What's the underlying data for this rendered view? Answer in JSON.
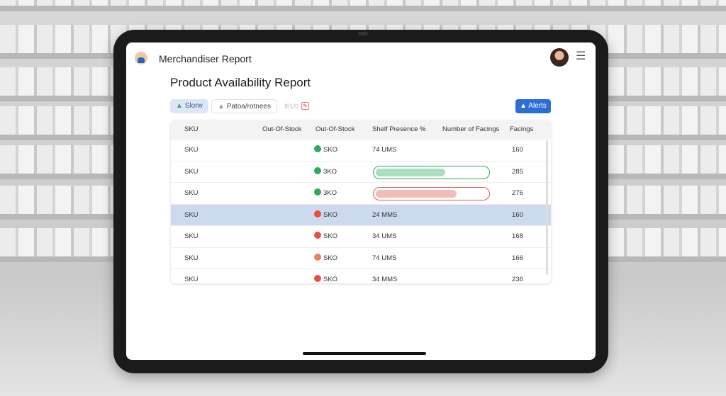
{
  "app": {
    "title": "Merchandiser Report",
    "logo_icon": "merchandiser-logo-icon",
    "menu_icon": "hamburger-menu-icon"
  },
  "page": {
    "title": "Product Availability Report"
  },
  "toolbar": {
    "chip1": "Slorw",
    "chip2": "Patoa/rotnees",
    "chip3": "8/1/0",
    "alerts": "Alerts",
    "accent": "#2b6fd6"
  },
  "table": {
    "headers": [
      "SKU",
      "Out-Of-Stock",
      "Out-Of-Stock",
      "Shelf Presence %",
      "Number of Facings",
      "Facings"
    ],
    "rows": [
      {
        "sku": "SKU",
        "status": "SKO",
        "status_color": "#2eaa5c",
        "presence": "74 UMS",
        "facings": "160"
      },
      {
        "sku": "SKU",
        "status": "3KO",
        "status_color": "#2eaa5c",
        "presence_bar": {
          "percent": 60,
          "color": "#2eaa5c"
        },
        "facings": "285"
      },
      {
        "sku": "SKU",
        "status": "3KO",
        "status_color": "#2eaa5c",
        "presence_bar": {
          "percent": 70,
          "color": "#e05a4a"
        },
        "facings": "276"
      },
      {
        "sku": "SKU",
        "status": "SKO",
        "status_color": "#ec5040",
        "presence": "24 MMS",
        "facings": "160",
        "selected": true
      },
      {
        "sku": "SKU",
        "status": "SKO",
        "status_color": "#ec5040",
        "presence": "34 UMS",
        "facings": "168"
      },
      {
        "sku": "SKU",
        "status": "SKO",
        "status_color": "#ee8050",
        "presence": "74 UMS",
        "facings": "166"
      },
      {
        "sku": "SKU",
        "status": "SKO",
        "status_color": "#ec5040",
        "presence": "34 MMS",
        "facings": "236"
      }
    ]
  }
}
